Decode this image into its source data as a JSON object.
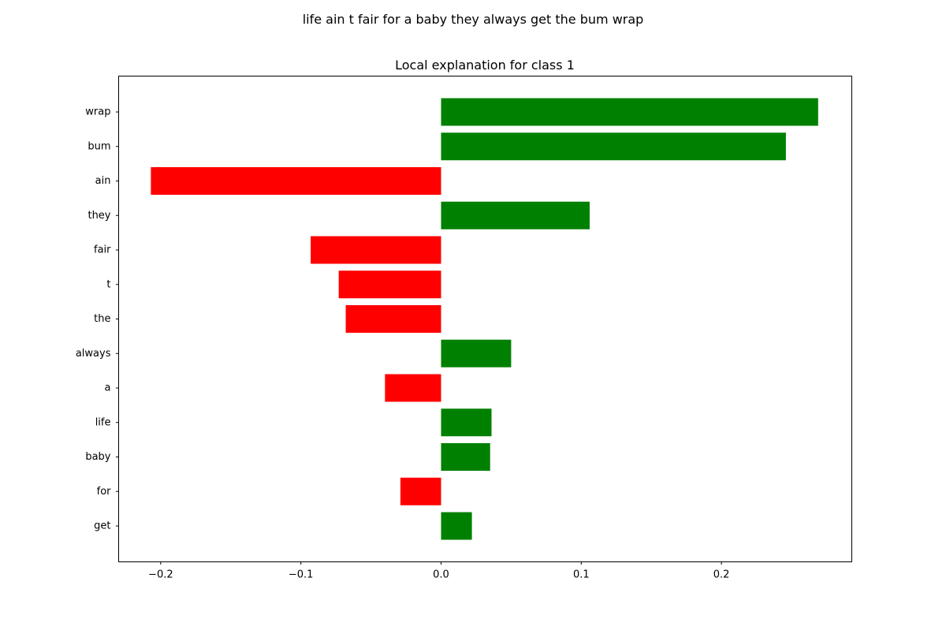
{
  "figure": {
    "suptitle": "life ain t fair for a baby they always get the bum wrap"
  },
  "chart_data": {
    "type": "bar",
    "orientation": "horizontal",
    "title": "Local explanation for class 1",
    "xlabel": "",
    "ylabel": "",
    "xlim": [
      -0.23,
      0.293
    ],
    "xticks": [
      -0.2,
      -0.1,
      0.0,
      0.1,
      0.2
    ],
    "xtick_labels": [
      "−0.2",
      "−0.1",
      "0.0",
      "0.1",
      "0.2"
    ],
    "grid": false,
    "colors": {
      "positive": "#008000",
      "negative": "#ff0000"
    },
    "categories": [
      "wrap",
      "bum",
      "ain",
      "they",
      "fair",
      "t",
      "the",
      "always",
      "a",
      "life",
      "baby",
      "for",
      "get"
    ],
    "values": [
      0.269,
      0.246,
      -0.207,
      0.106,
      -0.093,
      -0.073,
      -0.068,
      0.05,
      -0.04,
      0.036,
      0.035,
      -0.029,
      0.022
    ]
  }
}
